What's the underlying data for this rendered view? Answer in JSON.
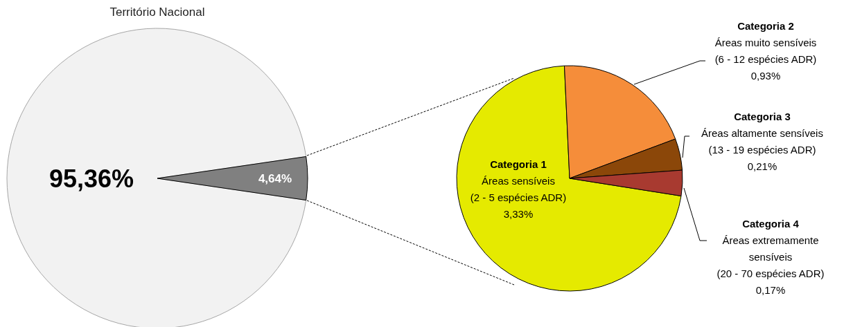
{
  "chart_data": [
    {
      "type": "pie",
      "title": "Território Nacional",
      "categories": [
        null,
        null
      ],
      "values": [
        95.36,
        4.64
      ],
      "colors": [
        "#f2f2f2",
        "#808080"
      ],
      "value_labels": [
        "95,36%",
        "4,64%"
      ]
    },
    {
      "type": "pie",
      "categories": [
        "Categoria 1\nÁreas sensíveis\n(2 - 5 espécies ADR)",
        "Categoria 2\nÁreas muito sensíveis\n(6 - 12 espécies ADR)",
        "Categoria 3\nÁreas altamente sensíveis\n(13 - 19 espécies ADR)",
        "Categoria 4\nÁreas extremamente\nsensíveis\n(20 - 70 espécies ADR)"
      ],
      "values": [
        3.33,
        0.93,
        0.21,
        0.17
      ],
      "colors": [
        "#e5ea00",
        "#f58d3a",
        "#8b4709",
        "#a83a30"
      ],
      "value_labels": [
        "3,33%",
        "0,93%",
        "0,21%",
        "0,17%"
      ]
    }
  ]
}
